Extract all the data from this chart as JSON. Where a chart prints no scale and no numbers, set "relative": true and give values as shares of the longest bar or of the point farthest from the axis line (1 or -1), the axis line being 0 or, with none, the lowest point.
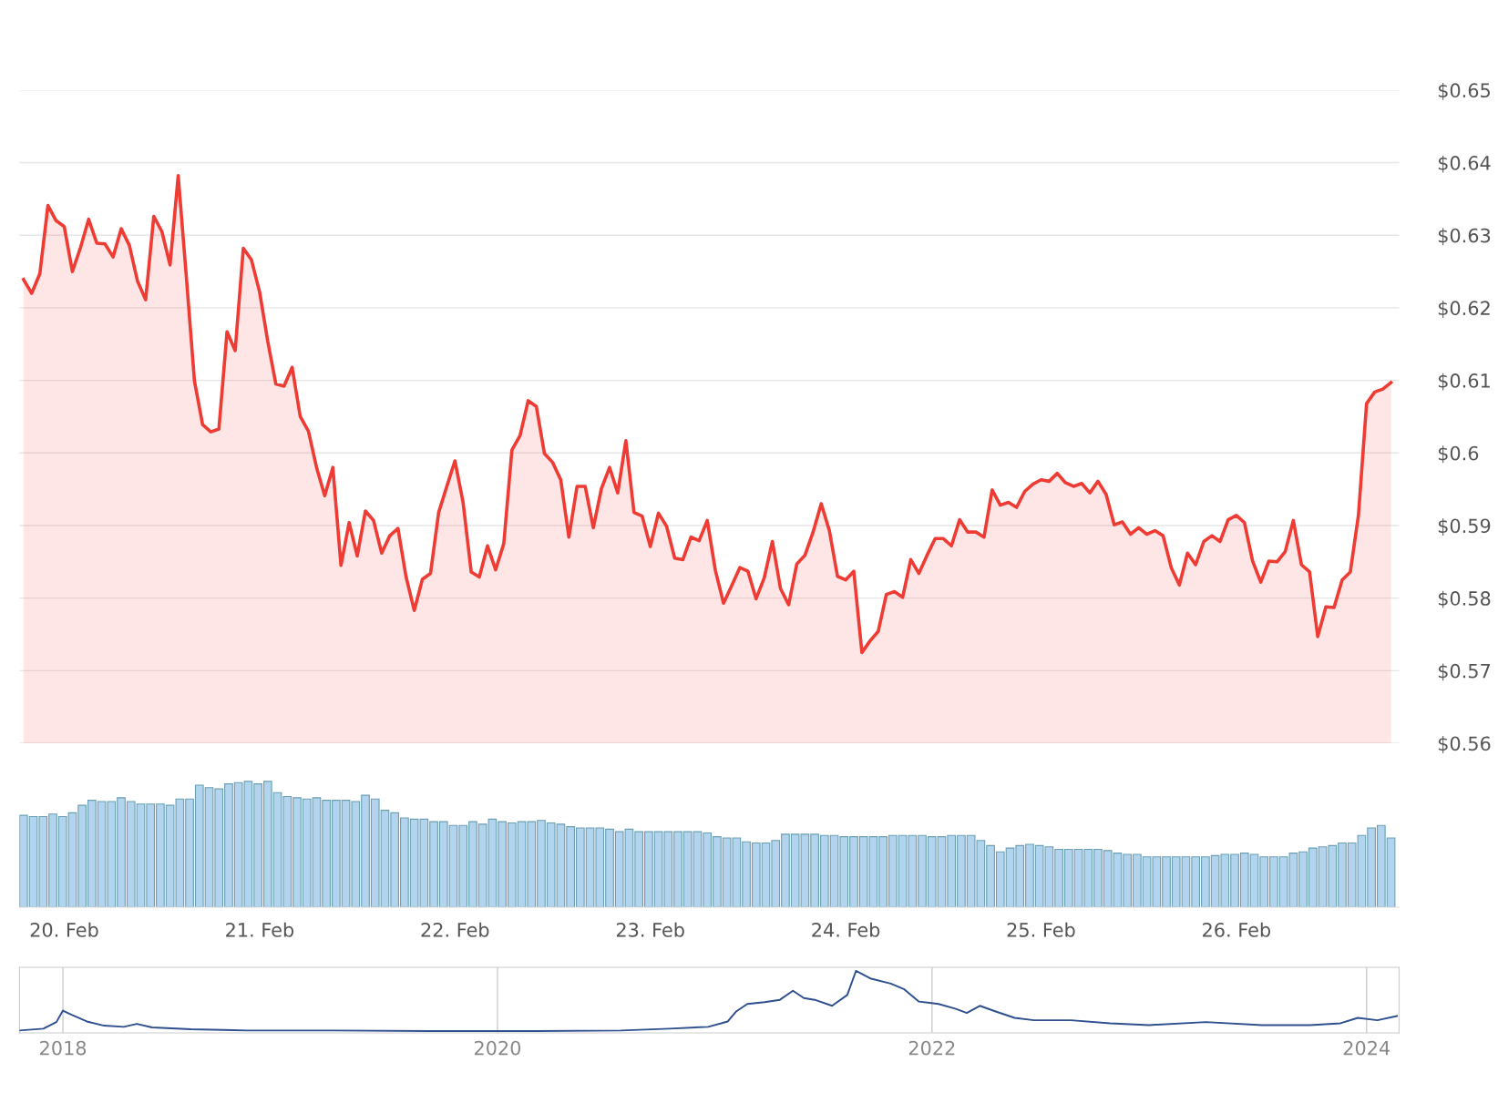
{
  "chart_data": [
    {
      "type": "area",
      "color": "#ee3b34",
      "grid": "y",
      "tick_labels": "y",
      "xlim": [
        "2024-02-19T18:30",
        "2024-02-26T20:00"
      ],
      "ylim": [
        0.56,
        0.65
      ],
      "yticks": [
        {
          "value": 0.56,
          "label": "$0.56"
        },
        {
          "value": 0.57,
          "label": "$0.57"
        },
        {
          "value": 0.58,
          "label": "$0.58"
        },
        {
          "value": 0.59,
          "label": "$0.59"
        },
        {
          "value": 0.6,
          "label": "$0.6"
        },
        {
          "value": 0.61,
          "label": "$0.61"
        },
        {
          "value": 0.62,
          "label": "$0.62"
        },
        {
          "value": 0.63,
          "label": "$0.63"
        },
        {
          "value": 0.64,
          "label": "$0.64"
        },
        {
          "value": 0.65,
          "label": "$0.65"
        }
      ],
      "x": [
        "2024-02-19T19:00",
        "2024-02-19T20:00",
        "2024-02-19T21:00",
        "2024-02-19T22:00",
        "2024-02-19T23:00",
        "2024-02-20T00:00",
        "2024-02-20T01:00",
        "2024-02-20T02:00",
        "2024-02-20T03:00",
        "2024-02-20T04:00",
        "2024-02-20T05:00",
        "2024-02-20T06:00",
        "2024-02-20T07:00",
        "2024-02-20T08:00",
        "2024-02-20T09:00",
        "2024-02-20T10:00",
        "2024-02-20T11:00",
        "2024-02-20T12:00",
        "2024-02-20T13:00",
        "2024-02-20T14:00",
        "2024-02-20T15:00",
        "2024-02-20T16:00",
        "2024-02-20T17:00",
        "2024-02-20T18:00",
        "2024-02-20T19:00",
        "2024-02-20T20:00",
        "2024-02-20T21:00",
        "2024-02-20T22:00",
        "2024-02-20T23:00",
        "2024-02-21T00:00",
        "2024-02-21T01:00",
        "2024-02-21T02:00",
        "2024-02-21T03:00",
        "2024-02-21T04:00",
        "2024-02-21T05:00",
        "2024-02-21T06:00",
        "2024-02-21T07:00",
        "2024-02-21T08:00",
        "2024-02-21T09:00",
        "2024-02-21T10:00",
        "2024-02-21T11:00",
        "2024-02-21T12:00",
        "2024-02-21T13:00",
        "2024-02-21T14:00",
        "2024-02-21T15:00",
        "2024-02-21T16:00",
        "2024-02-21T17:00",
        "2024-02-21T18:00",
        "2024-02-21T19:00",
        "2024-02-21T20:00",
        "2024-02-21T21:00",
        "2024-02-21T22:00",
        "2024-02-21T23:00",
        "2024-02-22T00:00",
        "2024-02-22T01:00",
        "2024-02-22T02:00",
        "2024-02-22T03:00",
        "2024-02-22T04:00",
        "2024-02-22T05:00",
        "2024-02-22T06:00",
        "2024-02-22T07:00",
        "2024-02-22T08:00",
        "2024-02-22T09:00",
        "2024-02-22T10:00",
        "2024-02-22T11:00",
        "2024-02-22T12:00",
        "2024-02-22T13:00",
        "2024-02-22T14:00",
        "2024-02-22T15:00",
        "2024-02-22T16:00",
        "2024-02-22T17:00",
        "2024-02-22T18:00",
        "2024-02-22T19:00",
        "2024-02-22T20:00",
        "2024-02-22T21:00",
        "2024-02-22T22:00",
        "2024-02-22T23:00",
        "2024-02-23T00:00",
        "2024-02-23T01:00",
        "2024-02-23T02:00",
        "2024-02-23T03:00",
        "2024-02-23T04:00",
        "2024-02-23T05:00",
        "2024-02-23T06:00",
        "2024-02-23T07:00",
        "2024-02-23T08:00",
        "2024-02-23T09:00",
        "2024-02-23T10:00",
        "2024-02-23T11:00",
        "2024-02-23T12:00",
        "2024-02-23T13:00",
        "2024-02-23T14:00",
        "2024-02-23T15:00",
        "2024-02-23T16:00",
        "2024-02-23T17:00",
        "2024-02-23T18:00",
        "2024-02-23T19:00",
        "2024-02-23T20:00",
        "2024-02-23T21:00",
        "2024-02-23T22:00",
        "2024-02-23T23:00",
        "2024-02-24T00:00",
        "2024-02-24T01:00",
        "2024-02-24T02:00",
        "2024-02-24T03:00",
        "2024-02-24T04:00",
        "2024-02-24T05:00",
        "2024-02-24T06:00",
        "2024-02-24T07:00",
        "2024-02-24T08:00",
        "2024-02-24T09:00",
        "2024-02-24T10:00",
        "2024-02-24T11:00",
        "2024-02-24T12:00",
        "2024-02-24T13:00",
        "2024-02-24T14:00",
        "2024-02-24T15:00",
        "2024-02-24T16:00",
        "2024-02-24T17:00",
        "2024-02-24T18:00",
        "2024-02-24T19:00",
        "2024-02-24T20:00",
        "2024-02-24T21:00",
        "2024-02-24T22:00",
        "2024-02-24T23:00",
        "2024-02-25T00:00",
        "2024-02-25T01:00",
        "2024-02-25T02:00",
        "2024-02-25T03:00",
        "2024-02-25T04:00",
        "2024-02-25T05:00",
        "2024-02-25T06:00",
        "2024-02-25T07:00",
        "2024-02-25T08:00",
        "2024-02-25T09:00",
        "2024-02-25T10:00",
        "2024-02-25T11:00",
        "2024-02-25T12:00",
        "2024-02-25T13:00",
        "2024-02-25T14:00",
        "2024-02-25T15:00",
        "2024-02-25T16:00",
        "2024-02-25T17:00",
        "2024-02-25T18:00",
        "2024-02-25T19:00",
        "2024-02-25T20:00",
        "2024-02-25T21:00",
        "2024-02-25T22:00",
        "2024-02-25T23:00",
        "2024-02-26T00:00",
        "2024-02-26T01:00",
        "2024-02-26T02:00",
        "2024-02-26T03:00",
        "2024-02-26T04:00",
        "2024-02-26T05:00",
        "2024-02-26T06:00",
        "2024-02-26T07:00",
        "2024-02-26T08:00",
        "2024-02-26T09:00",
        "2024-02-26T10:00",
        "2024-02-26T11:00",
        "2024-02-26T12:00",
        "2024-02-26T13:00",
        "2024-02-26T14:00",
        "2024-02-26T15:00",
        "2024-02-26T16:00",
        "2024-02-26T17:00",
        "2024-02-26T18:00",
        "2024-02-26T19:00"
      ],
      "values": [
        0.6239,
        0.622,
        0.6247,
        0.6341,
        0.632,
        0.6312,
        0.625,
        0.6283,
        0.6322,
        0.6289,
        0.6288,
        0.627,
        0.6309,
        0.6286,
        0.6237,
        0.6211,
        0.6326,
        0.6305,
        0.6259,
        0.6382,
        0.6243,
        0.6099,
        0.6039,
        0.6029,
        0.6033,
        0.6167,
        0.6141,
        0.6282,
        0.6266,
        0.6222,
        0.6154,
        0.6095,
        0.6092,
        0.6118,
        0.605,
        0.603,
        0.598,
        0.5941,
        0.598,
        0.5845,
        0.5904,
        0.5858,
        0.592,
        0.5907,
        0.5862,
        0.5886,
        0.5896,
        0.5829,
        0.5783,
        0.5826,
        0.5834,
        0.5918,
        0.5954,
        0.5989,
        0.5932,
        0.5836,
        0.5829,
        0.5872,
        0.5839,
        0.5875,
        0.6004,
        0.6024,
        0.6072,
        0.6064,
        0.5999,
        0.5987,
        0.5963,
        0.5884,
        0.5954,
        0.5954,
        0.5897,
        0.5951,
        0.598,
        0.5945,
        0.6017,
        0.5918,
        0.5913,
        0.5871,
        0.5917,
        0.5899,
        0.5855,
        0.5853,
        0.5884,
        0.5879,
        0.5907,
        0.5838,
        0.5793,
        0.5817,
        0.5842,
        0.5837,
        0.5799,
        0.5828,
        0.5878,
        0.5813,
        0.5791,
        0.5847,
        0.5859,
        0.5891,
        0.593,
        0.5893,
        0.583,
        0.5825,
        0.5837,
        0.5725,
        0.5741,
        0.5754,
        0.5805,
        0.5809,
        0.5801,
        0.5853,
        0.5834,
        0.5859,
        0.5882,
        0.5882,
        0.5872,
        0.5908,
        0.5891,
        0.5891,
        0.5884,
        0.5949,
        0.5928,
        0.5932,
        0.5925,
        0.5947,
        0.5957,
        0.5963,
        0.5961,
        0.5972,
        0.5959,
        0.5954,
        0.5958,
        0.5945,
        0.5961,
        0.5943,
        0.5901,
        0.5905,
        0.5888,
        0.5897,
        0.5888,
        0.5893,
        0.5886,
        0.5842,
        0.5818,
        0.5862,
        0.5846,
        0.5878,
        0.5886,
        0.5878,
        0.5908,
        0.5914,
        0.5904,
        0.5851,
        0.5822,
        0.5851,
        0.585,
        0.5864,
        0.5907,
        0.5846,
        0.5836,
        0.5747,
        0.5788,
        0.5787,
        0.5825,
        0.5836,
        0.5914,
        0.6068,
        0.6084,
        0.6088,
        0.6097
      ]
    },
    {
      "type": "bar",
      "relative": true,
      "color": "#b3d4ee",
      "tick_labels": "x",
      "xlim": [
        "2024-02-19T18:30",
        "2024-02-26T20:00"
      ],
      "xticks": [
        {
          "value": "2024-02-20",
          "label": "20. Feb"
        },
        {
          "value": "2024-02-21",
          "label": "21. Feb"
        },
        {
          "value": "2024-02-22",
          "label": "22. Feb"
        },
        {
          "value": "2024-02-23",
          "label": "23. Feb"
        },
        {
          "value": "2024-02-24",
          "label": "24. Feb"
        },
        {
          "value": "2024-02-25",
          "label": "25. Feb"
        },
        {
          "value": "2024-02-26",
          "label": "26. Feb"
        }
      ],
      "x": [
        "2024-02-19T19:00",
        "2024-02-19T20:12",
        "2024-02-19T21:24",
        "2024-02-19T22:36",
        "2024-02-19T23:48",
        "2024-02-20T01:00",
        "2024-02-20T02:12",
        "2024-02-20T03:24",
        "2024-02-20T04:36",
        "2024-02-20T05:48",
        "2024-02-20T07:00",
        "2024-02-20T08:12",
        "2024-02-20T09:24",
        "2024-02-20T10:36",
        "2024-02-20T11:48",
        "2024-02-20T13:00",
        "2024-02-20T14:12",
        "2024-02-20T15:24",
        "2024-02-20T16:36",
        "2024-02-20T17:48",
        "2024-02-20T19:00",
        "2024-02-20T20:12",
        "2024-02-20T21:24",
        "2024-02-20T22:36",
        "2024-02-20T23:48",
        "2024-02-21T01:00",
        "2024-02-21T02:12",
        "2024-02-21T03:24",
        "2024-02-21T04:36",
        "2024-02-21T05:48",
        "2024-02-21T07:00",
        "2024-02-21T08:12",
        "2024-02-21T09:24",
        "2024-02-21T10:36",
        "2024-02-21T11:48",
        "2024-02-21T13:00",
        "2024-02-21T14:12",
        "2024-02-21T15:24",
        "2024-02-21T16:36",
        "2024-02-21T17:48",
        "2024-02-21T19:00",
        "2024-02-21T20:12",
        "2024-02-21T21:24",
        "2024-02-21T22:36",
        "2024-02-21T23:48",
        "2024-02-22T01:00",
        "2024-02-22T02:12",
        "2024-02-22T03:24",
        "2024-02-22T04:36",
        "2024-02-22T05:48",
        "2024-02-22T07:00",
        "2024-02-22T08:12",
        "2024-02-22T09:24",
        "2024-02-22T10:36",
        "2024-02-22T11:48",
        "2024-02-22T13:00",
        "2024-02-22T14:12",
        "2024-02-22T15:24",
        "2024-02-22T16:36",
        "2024-02-22T17:48",
        "2024-02-22T19:00",
        "2024-02-22T20:12",
        "2024-02-22T21:24",
        "2024-02-22T22:36",
        "2024-02-22T23:48",
        "2024-02-23T01:00",
        "2024-02-23T02:12",
        "2024-02-23T03:24",
        "2024-02-23T04:36",
        "2024-02-23T05:48",
        "2024-02-23T07:00",
        "2024-02-23T08:12",
        "2024-02-23T09:24",
        "2024-02-23T10:36",
        "2024-02-23T11:48",
        "2024-02-23T13:00",
        "2024-02-23T14:12",
        "2024-02-23T15:24",
        "2024-02-23T16:36",
        "2024-02-23T17:48",
        "2024-02-23T19:00",
        "2024-02-23T20:12",
        "2024-02-23T21:24",
        "2024-02-23T22:36",
        "2024-02-23T23:48",
        "2024-02-24T01:00",
        "2024-02-24T02:12",
        "2024-02-24T03:24",
        "2024-02-24T04:36",
        "2024-02-24T05:48",
        "2024-02-24T07:00",
        "2024-02-24T08:12",
        "2024-02-24T09:24",
        "2024-02-24T10:36",
        "2024-02-24T11:48",
        "2024-02-24T13:00",
        "2024-02-24T14:12",
        "2024-02-24T15:24",
        "2024-02-24T16:36",
        "2024-02-24T17:48",
        "2024-02-24T19:00",
        "2024-02-24T20:12",
        "2024-02-24T21:24",
        "2024-02-24T22:36",
        "2024-02-24T23:48",
        "2024-02-25T01:00",
        "2024-02-25T02:12",
        "2024-02-25T03:24",
        "2024-02-25T04:36",
        "2024-02-25T05:48",
        "2024-02-25T07:00",
        "2024-02-25T08:12",
        "2024-02-25T09:24",
        "2024-02-25T10:36",
        "2024-02-25T11:48",
        "2024-02-25T13:00",
        "2024-02-25T14:12",
        "2024-02-25T15:24",
        "2024-02-25T16:36",
        "2024-02-25T17:48",
        "2024-02-25T19:00",
        "2024-02-25T20:12",
        "2024-02-25T21:24",
        "2024-02-25T22:36",
        "2024-02-25T23:48",
        "2024-02-26T01:00",
        "2024-02-26T02:12",
        "2024-02-26T03:24",
        "2024-02-26T04:36",
        "2024-02-26T05:48",
        "2024-02-26T07:00",
        "2024-02-26T08:12",
        "2024-02-26T09:24",
        "2024-02-26T10:36",
        "2024-02-26T11:48",
        "2024-02-26T13:00",
        "2024-02-26T14:12",
        "2024-02-26T15:24",
        "2024-02-26T16:36",
        "2024-02-26T17:48",
        "2024-02-26T19:00"
      ],
      "values": [
        0.73,
        0.72,
        0.72,
        0.74,
        0.72,
        0.75,
        0.81,
        0.85,
        0.84,
        0.84,
        0.87,
        0.84,
        0.82,
        0.82,
        0.82,
        0.81,
        0.86,
        0.86,
        0.97,
        0.95,
        0.94,
        0.98,
        0.99,
        1,
        0.98,
        1,
        0.91,
        0.88,
        0.87,
        0.86,
        0.87,
        0.85,
        0.85,
        0.85,
        0.84,
        0.89,
        0.86,
        0.77,
        0.75,
        0.71,
        0.7,
        0.7,
        0.68,
        0.68,
        0.65,
        0.65,
        0.68,
        0.66,
        0.7,
        0.68,
        0.67,
        0.68,
        0.68,
        0.69,
        0.67,
        0.66,
        0.64,
        0.63,
        0.63,
        0.63,
        0.62,
        0.6,
        0.62,
        0.6,
        0.6,
        0.6,
        0.6,
        0.6,
        0.6,
        0.6,
        0.59,
        0.56,
        0.55,
        0.55,
        0.52,
        0.51,
        0.51,
        0.53,
        0.58,
        0.58,
        0.58,
        0.58,
        0.57,
        0.57,
        0.56,
        0.56,
        0.56,
        0.56,
        0.56,
        0.57,
        0.57,
        0.57,
        0.57,
        0.56,
        0.56,
        0.57,
        0.57,
        0.57,
        0.53,
        0.49,
        0.44,
        0.47,
        0.49,
        0.5,
        0.49,
        0.48,
        0.46,
        0.46,
        0.46,
        0.46,
        0.46,
        0.45,
        0.43,
        0.42,
        0.42,
        0.4,
        0.4,
        0.4,
        0.4,
        0.4,
        0.4,
        0.4,
        0.41,
        0.42,
        0.42,
        0.43,
        0.42,
        0.4,
        0.4,
        0.4,
        0.43,
        0.44,
        0.47,
        0.48,
        0.49,
        0.51,
        0.51,
        0.57,
        0.63,
        0.65,
        0.55
      ]
    },
    {
      "type": "line",
      "relative": true,
      "color": "#2f4f8f",
      "grid": "x",
      "tick_labels": "x",
      "xlim": [
        2017.8,
        2024.15
      ],
      "xticks": [
        2018,
        2020,
        2022,
        2024
      ],
      "x": [
        2017.8,
        2017.91,
        2017.97,
        2018.0,
        2018.04,
        2018.11,
        2018.19,
        2018.28,
        2018.34,
        2018.41,
        2018.59,
        2018.85,
        2019.25,
        2019.69,
        2020.18,
        2020.57,
        2020.79,
        2020.97,
        2021.06,
        2021.1,
        2021.15,
        2021.23,
        2021.3,
        2021.36,
        2021.41,
        2021.46,
        2021.54,
        2021.61,
        2021.65,
        2021.72,
        2021.81,
        2021.87,
        2021.94,
        2022.03,
        2022.11,
        2022.16,
        2022.22,
        2022.29,
        2022.38,
        2022.47,
        2022.64,
        2022.82,
        2023.0,
        2023.26,
        2023.52,
        2023.74,
        2023.88,
        2023.96,
        2024.05,
        2024.14
      ],
      "values": [
        0.01,
        0.04,
        0.15,
        0.34,
        0.27,
        0.16,
        0.09,
        0.07,
        0.12,
        0.06,
        0.03,
        0.01,
        0.01,
        0,
        0,
        0.01,
        0.04,
        0.07,
        0.16,
        0.33,
        0.45,
        0.48,
        0.52,
        0.67,
        0.55,
        0.52,
        0.42,
        0.6,
        1,
        0.87,
        0.79,
        0.7,
        0.49,
        0.45,
        0.37,
        0.3,
        0.42,
        0.33,
        0.22,
        0.18,
        0.18,
        0.13,
        0.1,
        0.15,
        0.1,
        0.1,
        0.13,
        0.22,
        0.18,
        0.25
      ]
    }
  ]
}
